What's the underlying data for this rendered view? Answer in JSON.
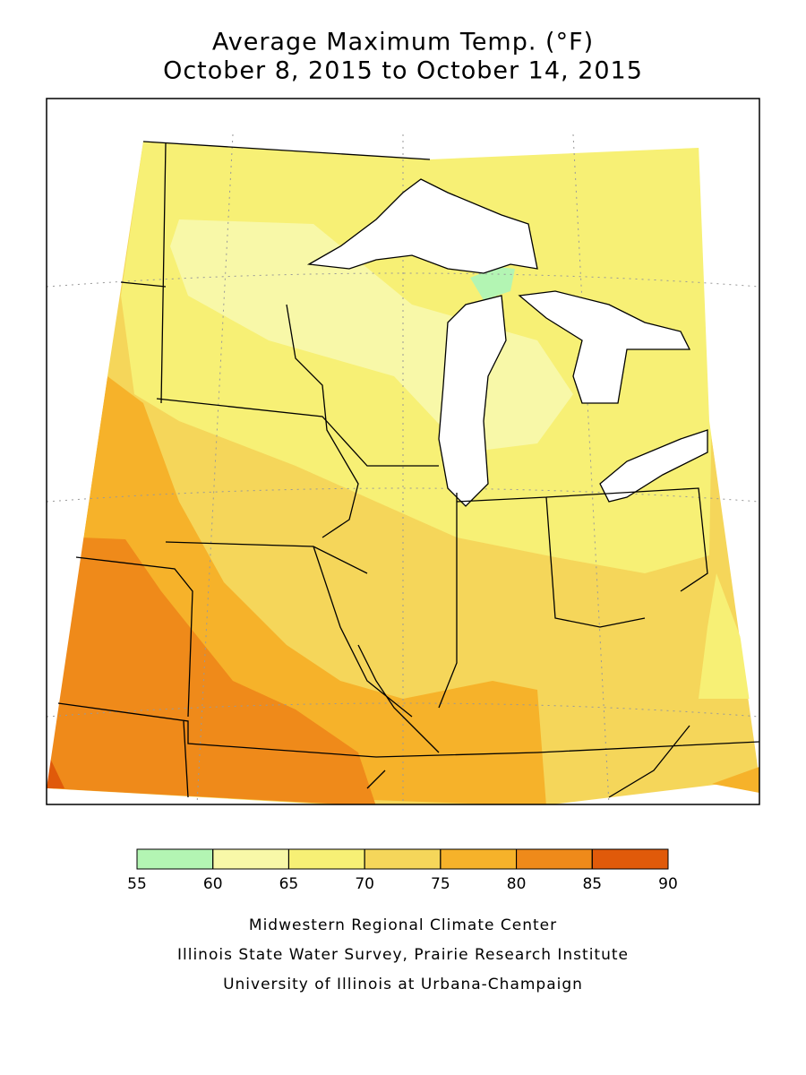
{
  "title": {
    "line1": "Average Maximum Temp. (°F)",
    "line2": "October 8, 2015 to October 14, 2015"
  },
  "legend": {
    "ticks": [
      55,
      60,
      65,
      70,
      75,
      80,
      85,
      90
    ],
    "colors": [
      "#b3f5b3",
      "#f8f8a8",
      "#f7f075",
      "#f5d65a",
      "#f6b22a",
      "#ef8a1a",
      "#e05a0a"
    ]
  },
  "credits": [
    "Midwestern Regional Climate Center",
    "Illinois State Water Survey, Prairie Research Institute",
    "University of Illinois at Urbana-Champaign"
  ]
}
